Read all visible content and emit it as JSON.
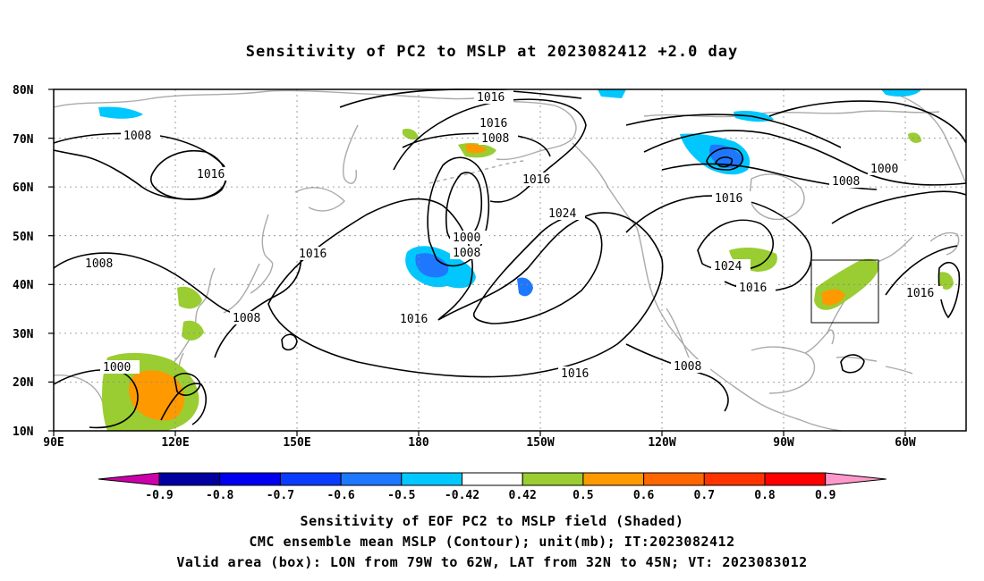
{
  "title": "Sensitivity of PC2 to MSLP at 2023082412 +2.0 day",
  "map": {
    "lat_labels": [
      "80N",
      "70N",
      "60N",
      "50N",
      "40N",
      "30N",
      "20N",
      "10N"
    ],
    "lon_labels": [
      "90E",
      "120E",
      "150E",
      "180",
      "150W",
      "120W",
      "90W",
      "60W"
    ],
    "contour_labels": [
      {
        "text": "1016"
      },
      {
        "text": "1016"
      },
      {
        "text": "1008"
      },
      {
        "text": "1008"
      },
      {
        "text": "1016"
      },
      {
        "text": "1016"
      },
      {
        "text": "1024"
      },
      {
        "text": "1000"
      },
      {
        "text": "1008"
      },
      {
        "text": "1016"
      },
      {
        "text": "1016"
      },
      {
        "text": "1000"
      },
      {
        "text": "1008"
      },
      {
        "text": "1016"
      },
      {
        "text": "1024"
      },
      {
        "text": "1016"
      },
      {
        "text": "1016"
      },
      {
        "text": "1008"
      },
      {
        "text": "1008"
      },
      {
        "text": "1000"
      },
      {
        "text": "1016"
      },
      {
        "text": "1008"
      }
    ]
  },
  "colorbar": {
    "colors": [
      "#0000a0",
      "#0000ee",
      "#0a3cff",
      "#1e78ff",
      "#00c8ff",
      "#ffffff",
      "#9acd32",
      "#ff9900",
      "#ff6600",
      "#ff3300",
      "#ff0000"
    ],
    "low_triangle_color": "#cc00aa",
    "high_triangle_color": "#ff99cc",
    "tick_labels": [
      "-0.9",
      "-0.8",
      "-0.7",
      "-0.6",
      "-0.5",
      "-0.42",
      "0.42",
      "0.5",
      "0.6",
      "0.7",
      "0.8",
      "0.9"
    ]
  },
  "captions": {
    "line1": "Sensitivity of EOF PC2 to MSLP field (Shaded)",
    "line2": "CMC ensemble mean MSLP (Contour); unit(mb); IT:2023082412",
    "line3": "Valid area (box): LON from 79W to 62W, LAT from 32N to 45N; VT: 2023083012"
  }
}
